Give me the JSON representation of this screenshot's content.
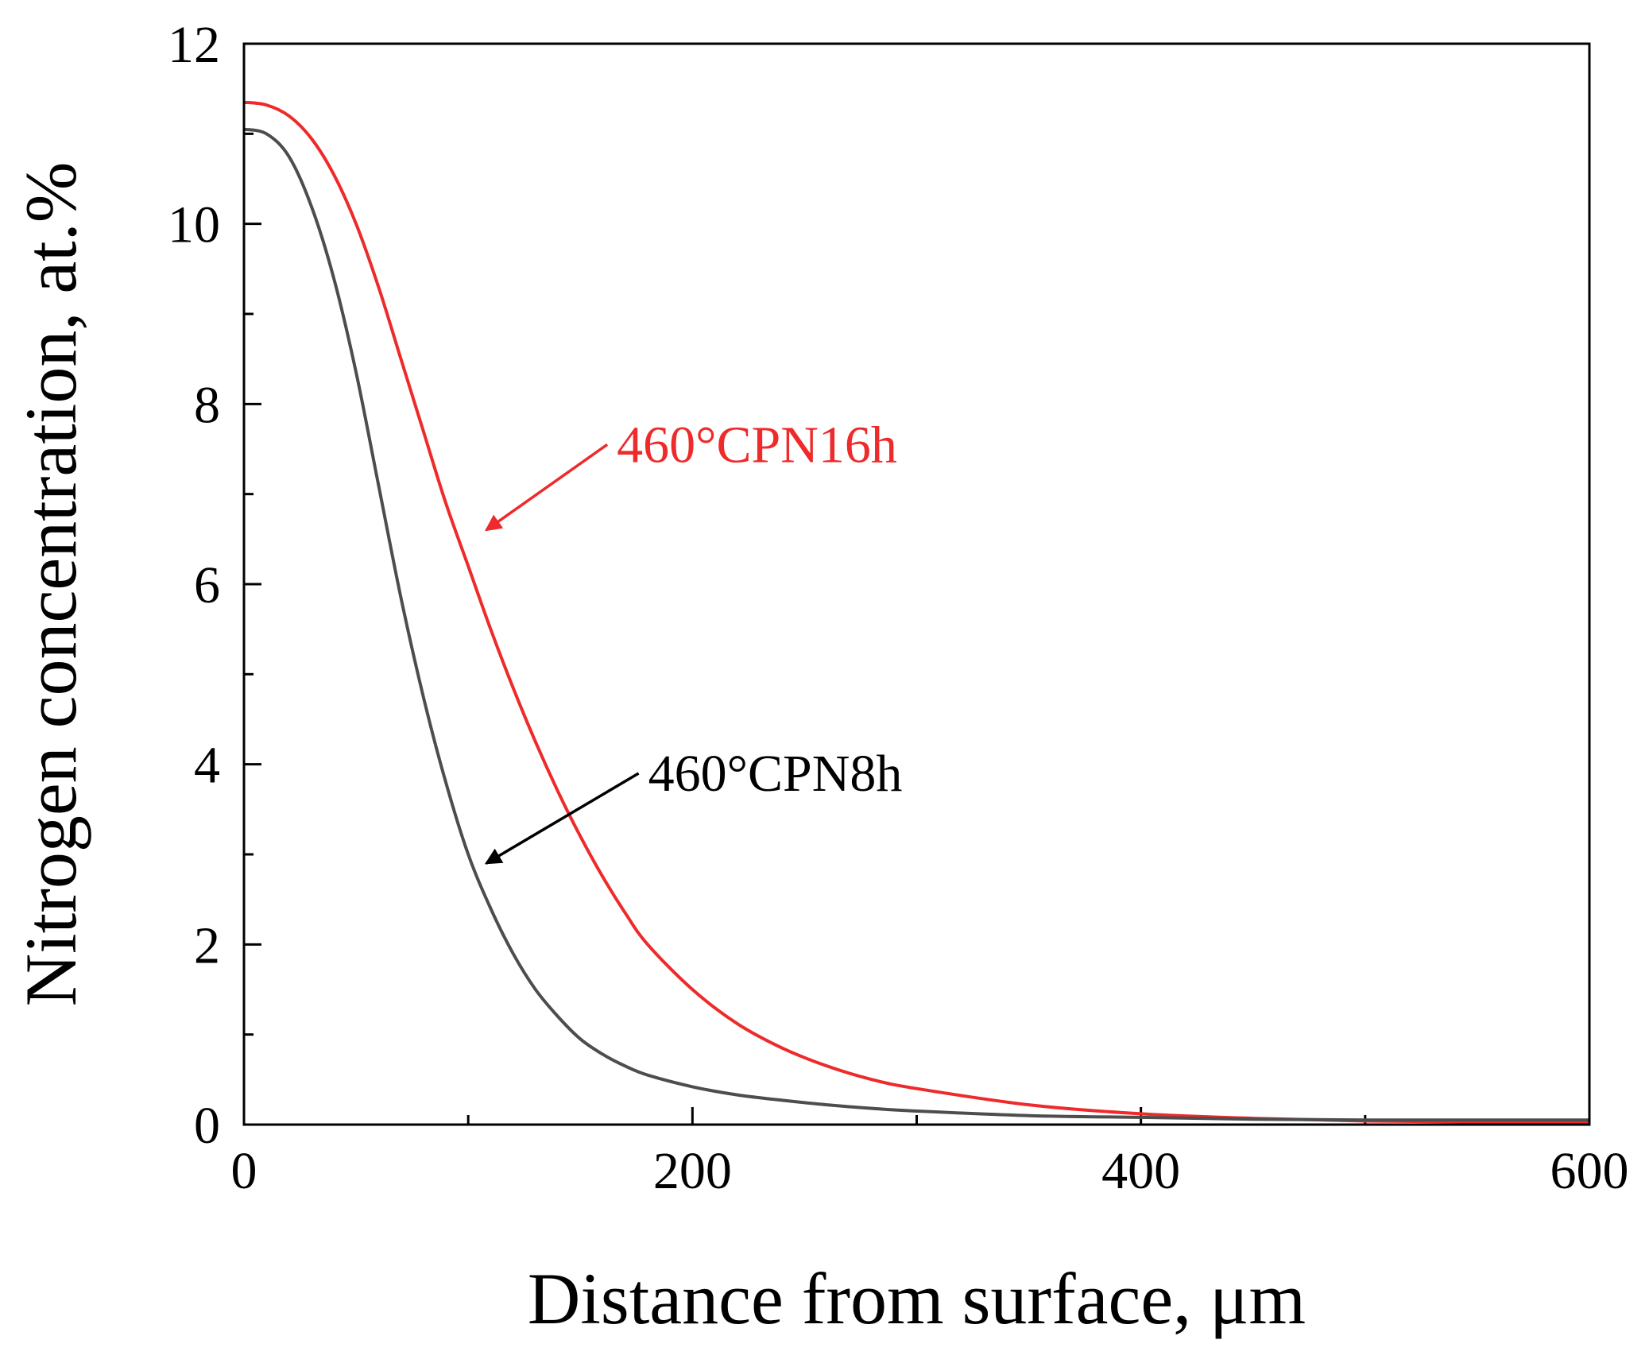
{
  "chart_data": {
    "type": "line",
    "title": "",
    "xlabel": "Distance from surface, μm",
    "ylabel": "Nitrogen concentration, at.%",
    "xlim": [
      0,
      600
    ],
    "ylim": [
      0,
      12
    ],
    "x_ticks": [
      0,
      200,
      400,
      600
    ],
    "y_ticks": [
      0,
      2,
      4,
      6,
      8,
      10,
      12
    ],
    "x_minor_ticks": [
      100,
      300,
      500
    ],
    "y_minor_ticks": [
      1,
      3,
      5,
      7,
      9,
      11
    ],
    "grid": false,
    "series": [
      {
        "name": "460°CPN16h",
        "color": "#ee2a2a",
        "x": [
          0,
          10,
          20,
          30,
          40,
          50,
          60,
          70,
          80,
          90,
          100,
          110,
          120,
          130,
          140,
          150,
          160,
          170,
          180,
          200,
          220,
          240,
          260,
          280,
          300,
          350,
          400,
          450,
          500,
          550,
          600
        ],
        "y": [
          11.35,
          11.32,
          11.2,
          10.95,
          10.55,
          10.0,
          9.3,
          8.5,
          7.7,
          6.9,
          6.2,
          5.5,
          4.85,
          4.25,
          3.7,
          3.2,
          2.75,
          2.35,
          2.0,
          1.5,
          1.12,
          0.85,
          0.65,
          0.5,
          0.4,
          0.22,
          0.12,
          0.07,
          0.04,
          0.03,
          0.02
        ]
      },
      {
        "name": "460°CPN8h",
        "color": "#4d4d4d",
        "x": [
          0,
          10,
          20,
          30,
          40,
          50,
          60,
          70,
          80,
          90,
          100,
          110,
          120,
          130,
          140,
          150,
          160,
          170,
          180,
          200,
          220,
          240,
          260,
          280,
          300,
          350,
          400,
          450,
          500,
          550,
          600
        ],
        "y": [
          11.05,
          11.0,
          10.75,
          10.2,
          9.4,
          8.35,
          7.1,
          5.85,
          4.75,
          3.8,
          3.0,
          2.4,
          1.9,
          1.5,
          1.2,
          0.95,
          0.78,
          0.65,
          0.55,
          0.42,
          0.33,
          0.27,
          0.22,
          0.18,
          0.15,
          0.1,
          0.08,
          0.06,
          0.05,
          0.05,
          0.05
        ]
      }
    ],
    "annotations": [
      {
        "text": "460°CPN16h",
        "series": "460°CPN16h",
        "color": "#ee2a2a",
        "arrow_to": [
          108,
          6.6
        ],
        "arrow_from": [
          162,
          7.55
        ]
      },
      {
        "text": "460°CPN8h",
        "series": "460°CPN8h",
        "color": "#000000",
        "arrow_to": [
          108,
          2.9
        ],
        "arrow_from": [
          176,
          3.9
        ]
      }
    ]
  }
}
